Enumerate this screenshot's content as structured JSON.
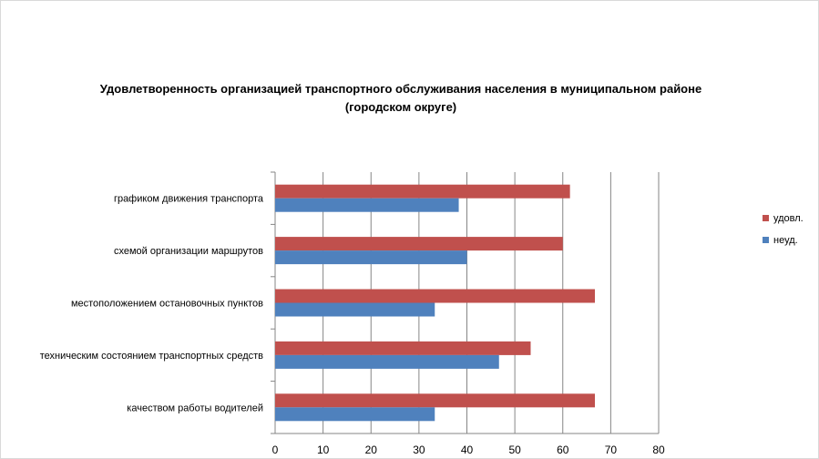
{
  "chart_data": {
    "type": "bar",
    "orientation": "horizontal",
    "title_line1": "Удовлетворенность организацией транспортного обслуживания населения в муниципальном районе",
    "title_line2": "(городском округе)",
    "categories": [
      "графиком  движения  транспорта",
      "схемой организации маршрутов",
      "местоположением  остановочных пунктов",
      "техническим  состоянием транспортных средств",
      "качеством  работы водителей"
    ],
    "series": [
      {
        "name": "удовл.",
        "color": "#c0504d",
        "values": [
          61.5,
          60,
          66.7,
          53.3,
          66.7
        ]
      },
      {
        "name": "неуд.",
        "color": "#4f81bd",
        "values": [
          38.3,
          40,
          33.3,
          46.7,
          33.3
        ]
      }
    ],
    "xlim": [
      0,
      80
    ],
    "ticks": [
      0,
      10,
      20,
      30,
      40,
      50,
      60,
      70,
      80
    ],
    "grid": true,
    "legend": "right"
  }
}
